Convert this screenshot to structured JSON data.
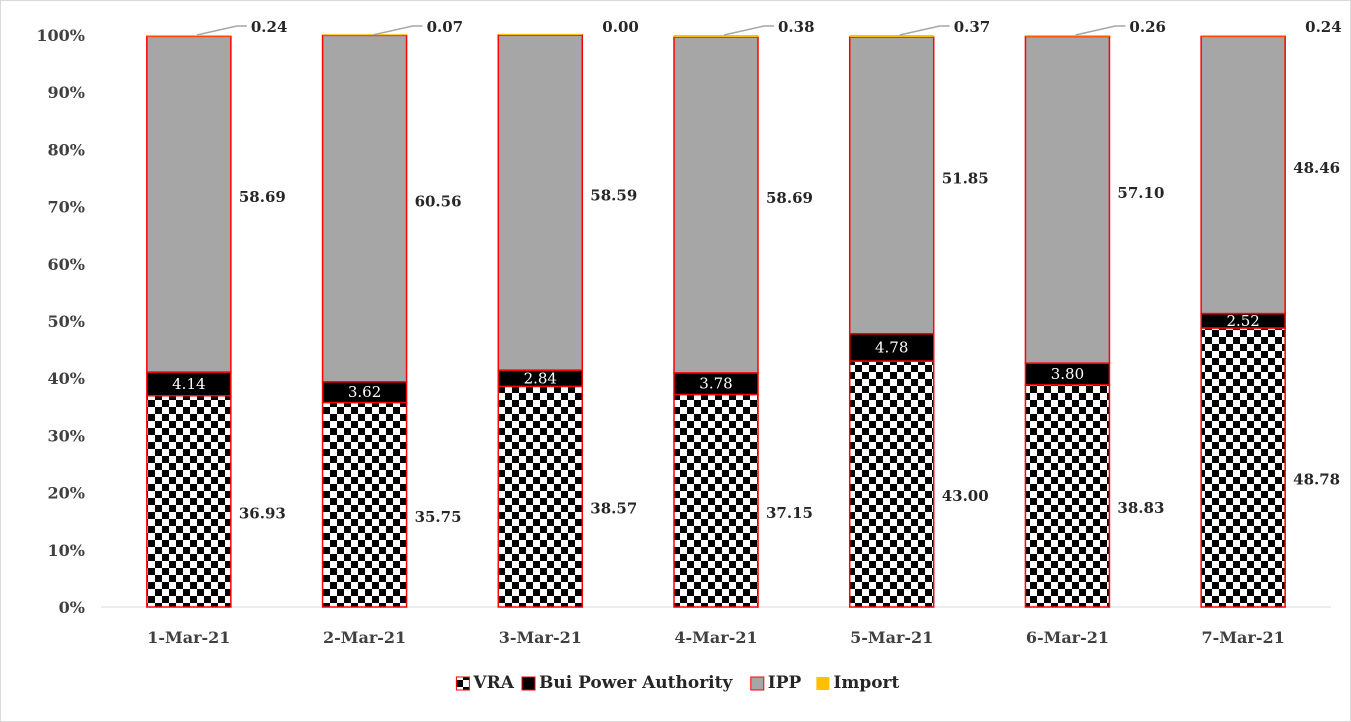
{
  "chart_data": {
    "type": "bar",
    "stacked": true,
    "percent_stacked": true,
    "title": "",
    "xlabel": "",
    "ylabel": "",
    "ylim": [
      0,
      100
    ],
    "yticks": [
      "0%",
      "10%",
      "20%",
      "30%",
      "40%",
      "50%",
      "60%",
      "70%",
      "80%",
      "90%",
      "100%"
    ],
    "grid": false,
    "legend_position": "bottom",
    "categories": [
      "1-Mar-21",
      "2-Mar-21",
      "3-Mar-21",
      "4-Mar-21",
      "5-Mar-21",
      "6-Mar-21",
      "7-Mar-21"
    ],
    "series": [
      {
        "name": "VRA",
        "color": "#000000",
        "pattern": "checkerboard",
        "values": [
          36.93,
          35.75,
          38.57,
          37.15,
          43.0,
          38.83,
          48.78
        ],
        "labels": [
          "36.93",
          "35.75",
          "38.57",
          "37.15",
          "43.00",
          "38.83",
          "48.78"
        ]
      },
      {
        "name": "Bui Power Authority",
        "color": "#000000",
        "values": [
          4.14,
          3.62,
          2.84,
          3.78,
          4.78,
          3.8,
          2.52
        ],
        "labels": [
          "4.14",
          "3.62",
          "2.84",
          "3.78",
          "4.78",
          "3.80",
          "2.52"
        ]
      },
      {
        "name": "IPP",
        "color": "#a6a6a6",
        "values": [
          58.69,
          60.56,
          58.59,
          58.69,
          51.85,
          57.1,
          48.46
        ],
        "labels": [
          "58.69",
          "60.56",
          "58.59",
          "58.69",
          "51.85",
          "57.10",
          "48.46"
        ]
      },
      {
        "name": "Import",
        "color": "#ffc000",
        "values": [
          0.24,
          0.07,
          0.0,
          0.38,
          0.37,
          0.26,
          0.24
        ],
        "labels": [
          "0.24",
          "0.07",
          "0.00",
          "0.38",
          "0.37",
          "0.26",
          "0.24"
        ]
      }
    ],
    "bar_outline_color": "#ff0000",
    "leader_line_color": "#a6a6a6"
  }
}
